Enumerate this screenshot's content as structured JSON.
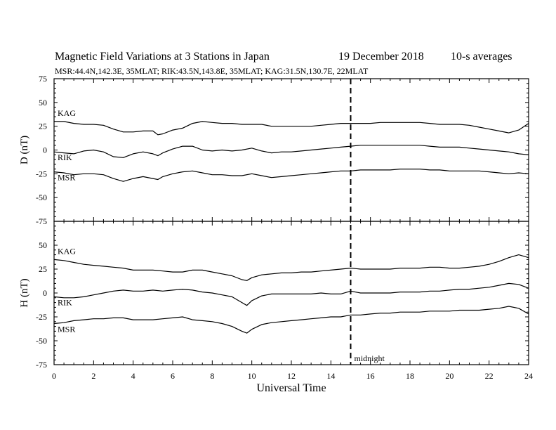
{
  "header": {
    "title": "Magnetic Field Variations at 3 Stations in Japan",
    "date": "19 December 2018",
    "averaging": "10-s averages",
    "stations_line": "MSR:44.4N,142.3E, 35MLAT;  RIK:43.5N,143.8E, 35MLAT;  KAG:31.5N,130.7E, 22MLAT"
  },
  "chart_data": [
    {
      "type": "line",
      "panel": "top",
      "ylabel": "D (nT)",
      "ylim": [
        -75,
        75
      ],
      "yticks": [
        75,
        50,
        25,
        0,
        -25,
        -50,
        -75
      ],
      "xlim": [
        0,
        24
      ],
      "xticks": [
        0,
        2,
        4,
        6,
        8,
        10,
        12,
        14,
        16,
        18,
        20,
        22,
        24
      ],
      "grid": false,
      "series": [
        {
          "name": "KAG",
          "x": [
            0,
            0.5,
            1,
            1.5,
            2,
            2.5,
            3,
            3.5,
            4,
            4.5,
            5,
            5.25,
            5.5,
            6,
            6.5,
            7,
            7.5,
            8,
            8.5,
            9,
            9.5,
            10,
            10.5,
            11,
            11.5,
            12,
            12.5,
            13,
            13.5,
            14,
            14.5,
            15,
            15.5,
            16,
            16.5,
            17,
            17.5,
            18,
            18.5,
            19,
            19.5,
            20,
            20.5,
            21,
            21.5,
            22,
            22.5,
            23,
            23.5,
            24
          ],
          "y": [
            30,
            30,
            28,
            27,
            27,
            26,
            22,
            19,
            19,
            20,
            20,
            16,
            17,
            21,
            23,
            28,
            30,
            29,
            28,
            28,
            27,
            27,
            27,
            25,
            25,
            25,
            25,
            25,
            26,
            27,
            28,
            28,
            28,
            28,
            29,
            29,
            29,
            29,
            29,
            28,
            27,
            27,
            27,
            26,
            24,
            22,
            20,
            18,
            21,
            28
          ]
        },
        {
          "name": "RIK",
          "x": [
            0,
            0.5,
            1,
            1.5,
            2,
            2.5,
            3,
            3.5,
            4,
            4.5,
            5,
            5.25,
            5.5,
            6,
            6.5,
            7,
            7.5,
            8,
            8.5,
            9,
            9.5,
            10,
            10.5,
            11,
            11.5,
            12,
            12.5,
            13,
            13.5,
            14,
            14.5,
            15,
            15.5,
            16,
            16.5,
            17,
            17.5,
            18,
            18.5,
            19,
            19.5,
            20,
            20.5,
            21,
            21.5,
            22,
            22.5,
            23,
            23.5,
            24
          ],
          "y": [
            -2,
            -3,
            -4,
            -1,
            0,
            -2,
            -7,
            -8,
            -4,
            -2,
            -4,
            -6,
            -3,
            1,
            4,
            4,
            0,
            -1,
            0,
            -1,
            0,
            2,
            -1,
            -3,
            -2,
            -2,
            -1,
            0,
            1,
            2,
            3,
            4,
            5,
            5,
            5,
            5,
            5,
            5,
            5,
            4,
            3,
            3,
            3,
            2,
            1,
            0,
            -1,
            -2,
            -4,
            -5
          ]
        },
        {
          "name": "MSR",
          "x": [
            0,
            0.5,
            1,
            1.5,
            2,
            2.5,
            3,
            3.5,
            4,
            4.5,
            5,
            5.25,
            5.5,
            6,
            6.5,
            7,
            7.5,
            8,
            8.5,
            9,
            9.5,
            10,
            10.5,
            11,
            11.5,
            12,
            12.5,
            13,
            13.5,
            14,
            14.5,
            15,
            15.5,
            16,
            16.5,
            17,
            17.5,
            18,
            18.5,
            19,
            19.5,
            20,
            20.5,
            21,
            21.5,
            22,
            22.5,
            23,
            23.5,
            24
          ],
          "y": [
            -23,
            -24,
            -26,
            -25,
            -25,
            -26,
            -30,
            -33,
            -30,
            -28,
            -30,
            -31,
            -28,
            -25,
            -23,
            -22,
            -24,
            -26,
            -26,
            -27,
            -27,
            -25,
            -27,
            -29,
            -28,
            -27,
            -26,
            -25,
            -24,
            -23,
            -22,
            -22,
            -21,
            -21,
            -21,
            -21,
            -20,
            -20,
            -20,
            -21,
            -21,
            -22,
            -22,
            -22,
            -22,
            -23,
            -24,
            -25,
            -24,
            -25
          ]
        }
      ]
    },
    {
      "type": "line",
      "panel": "bottom",
      "ylabel": "H (nT)",
      "xlabel": "Universal Time",
      "ylim": [
        -75,
        75
      ],
      "yticks": [
        50,
        25,
        0,
        -25,
        -50,
        -75
      ],
      "xlim": [
        0,
        24
      ],
      "xticks": [
        0,
        2,
        4,
        6,
        8,
        10,
        12,
        14,
        16,
        18,
        20,
        22,
        24
      ],
      "grid": false,
      "annotations": [
        {
          "text": "midnight",
          "x": 15
        }
      ],
      "series": [
        {
          "name": "KAG",
          "x": [
            0,
            0.5,
            1,
            1.5,
            2,
            2.5,
            3,
            3.5,
            4,
            4.5,
            5,
            5.5,
            6,
            6.5,
            7,
            7.5,
            8,
            8.5,
            9,
            9.5,
            9.75,
            10,
            10.5,
            11,
            11.5,
            12,
            12.5,
            13,
            13.5,
            14,
            14.5,
            15,
            15.5,
            16,
            16.5,
            17,
            17.5,
            18,
            18.5,
            19,
            19.5,
            20,
            20.5,
            21,
            21.5,
            22,
            22.5,
            23,
            23.5,
            24
          ],
          "y": [
            35,
            34,
            32,
            30,
            29,
            28,
            27,
            26,
            24,
            24,
            24,
            23,
            22,
            22,
            24,
            24,
            22,
            20,
            18,
            14,
            13,
            16,
            19,
            20,
            21,
            21,
            22,
            22,
            23,
            24,
            25,
            26,
            25,
            25,
            25,
            25,
            26,
            26,
            26,
            27,
            27,
            26,
            26,
            27,
            28,
            30,
            33,
            37,
            40,
            37
          ]
        },
        {
          "name": "RIK",
          "x": [
            0,
            0.5,
            1,
            1.5,
            2,
            2.5,
            3,
            3.5,
            4,
            4.5,
            5,
            5.5,
            6,
            6.5,
            7,
            7.5,
            8,
            8.5,
            9,
            9.5,
            9.75,
            10,
            10.5,
            11,
            11.5,
            12,
            12.5,
            13,
            13.5,
            14,
            14.5,
            15,
            15.5,
            16,
            16.5,
            17,
            17.5,
            18,
            18.5,
            19,
            19.5,
            20,
            20.5,
            21,
            21.5,
            22,
            22.5,
            23,
            23.5,
            24
          ],
          "y": [
            -4,
            -5,
            -5,
            -4,
            -2,
            0,
            2,
            3,
            2,
            2,
            3,
            2,
            3,
            4,
            3,
            1,
            0,
            -2,
            -4,
            -10,
            -13,
            -8,
            -3,
            -1,
            -1,
            -1,
            -1,
            -1,
            0,
            -1,
            -1,
            2,
            0,
            0,
            0,
            0,
            1,
            1,
            1,
            2,
            2,
            3,
            4,
            4,
            5,
            6,
            8,
            10,
            9,
            5
          ]
        },
        {
          "name": "MSR",
          "x": [
            0,
            0.5,
            1,
            1.5,
            2,
            2.5,
            3,
            3.5,
            4,
            4.5,
            5,
            5.5,
            6,
            6.5,
            7,
            7.5,
            8,
            8.5,
            9,
            9.5,
            9.75,
            10,
            10.5,
            11,
            11.5,
            12,
            12.5,
            13,
            13.5,
            14,
            14.5,
            15,
            15.5,
            16,
            16.5,
            17,
            17.5,
            18,
            18.5,
            19,
            19.5,
            20,
            20.5,
            21,
            21.5,
            22,
            22.5,
            23,
            23.5,
            24
          ],
          "y": [
            -32,
            -31,
            -29,
            -28,
            -27,
            -27,
            -26,
            -26,
            -28,
            -28,
            -28,
            -27,
            -26,
            -25,
            -28,
            -29,
            -30,
            -32,
            -35,
            -40,
            -42,
            -38,
            -33,
            -31,
            -30,
            -29,
            -28,
            -27,
            -26,
            -25,
            -25,
            -23,
            -23,
            -22,
            -21,
            -21,
            -20,
            -20,
            -20,
            -19,
            -19,
            -19,
            -18,
            -18,
            -18,
            -17,
            -16,
            -14,
            -16,
            -22
          ]
        }
      ]
    }
  ]
}
